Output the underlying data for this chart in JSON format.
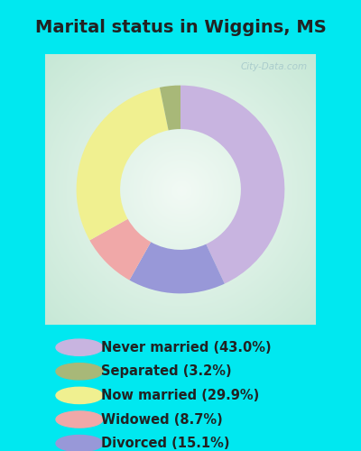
{
  "title": "Marital status in Wiggins, MS",
  "title_fontsize": 14,
  "title_fontweight": "bold",
  "background_outer": "#00e8f0",
  "background_chart_color1": "#c8e8d8",
  "background_chart_color2": "#e8f4ee",
  "watermark": "City-Data.com",
  "slices": [
    {
      "label": "Never married (43.0%)",
      "value": 43.0,
      "color": "#c8b4e0"
    },
    {
      "label": "Separated (3.2%)",
      "value": 3.2,
      "color": "#a8b878"
    },
    {
      "label": "Now married (29.9%)",
      "value": 29.9,
      "color": "#f0f090"
    },
    {
      "label": "Widowed (8.7%)",
      "value": 8.7,
      "color": "#f0a8a8"
    },
    {
      "label": "Divorced (15.1%)",
      "value": 15.1,
      "color": "#9898d8"
    }
  ],
  "slice_order": [
    0,
    4,
    3,
    2,
    1
  ],
  "startangle": 90,
  "donut_width": 0.42,
  "legend_fontsize": 10.5,
  "figsize": [
    4.0,
    5.0
  ],
  "dpi": 100
}
